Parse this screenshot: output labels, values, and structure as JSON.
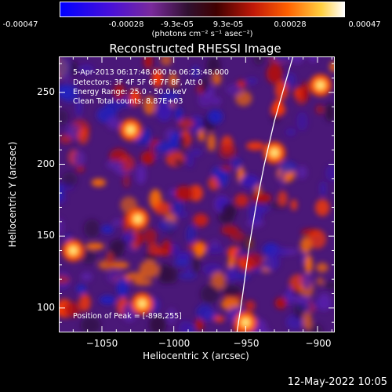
{
  "colorbar": {
    "ticks": [
      "-0.00047",
      "-0.00028",
      "-9.3e-05",
      "9.3e-05",
      "0.00028",
      "0.00047"
    ],
    "unit_text": "(photons cm⁻² s⁻¹ asec⁻²)",
    "range": [
      -0.00047,
      0.00047
    ]
  },
  "chart_data": {
    "type": "heatmap",
    "title": "Reconstructed RHESSI Image",
    "xlabel": "Heliocentric X (arcsec)",
    "ylabel": "Heliocentric Y (arcsec)",
    "xlim": [
      -1080,
      -888
    ],
    "ylim": [
      83,
      275
    ],
    "xticks": [
      -1050,
      -1000,
      -950,
      -900
    ],
    "yticks": [
      100,
      150,
      200,
      250
    ],
    "xtick_labels": [
      "−1050",
      "−1000",
      "−950",
      "−900"
    ],
    "ytick_labels": [
      "100",
      "150",
      "200",
      "250"
    ],
    "annotations": [
      "5-Apr-2013 06:17:48.000 to 06:23:48.000",
      "Detectors: 3F 4F 5F 6F 7F 8F, Att 0",
      "Energy Range: 25.0 - 50.0 keV",
      "Clean     Total counts: 8.87E+03"
    ],
    "peak_text": "Position of Peak = [-898,255]",
    "limb_curve": [
      [
        -956,
        83
      ],
      [
        -952,
        110
      ],
      [
        -948,
        140
      ],
      [
        -943,
        170
      ],
      [
        -937,
        200
      ],
      [
        -930,
        230
      ],
      [
        -922,
        258
      ],
      [
        -917,
        275
      ]
    ],
    "colormap": [
      "#0000ff",
      "#5000c8",
      "#7a2aa0",
      "#3a0a3a",
      "#b01010",
      "#ff3000",
      "#ff9000",
      "#ffff60",
      "#ffffff"
    ]
  },
  "timestamp": "12-May-2022 10:05"
}
